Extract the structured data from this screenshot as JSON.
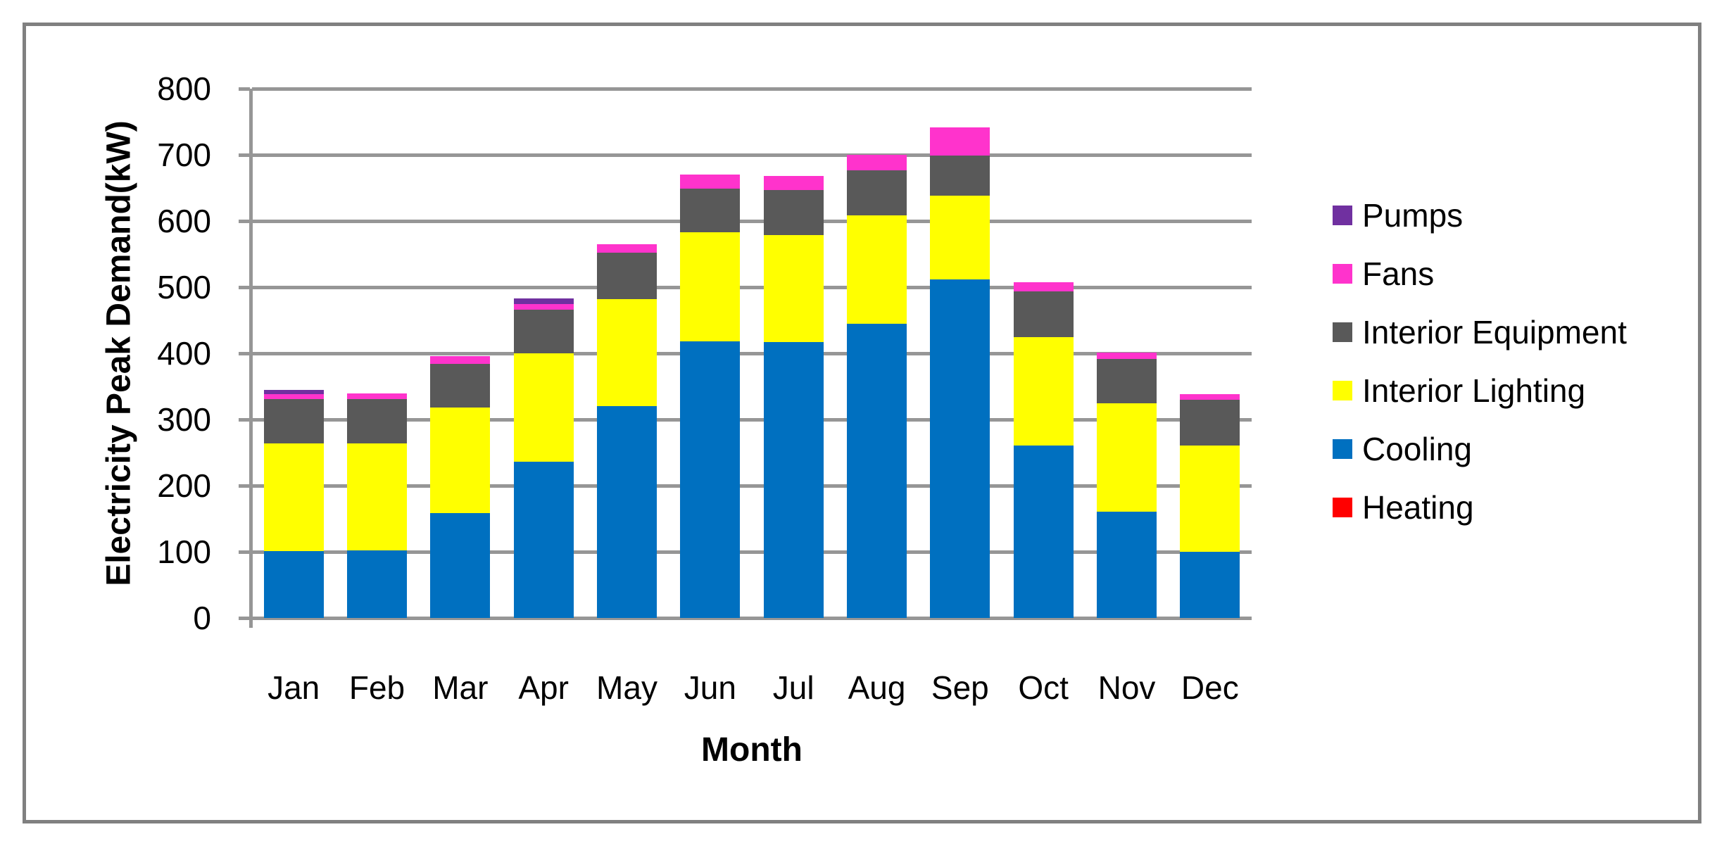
{
  "chart_data": {
    "type": "bar",
    "stacked": true,
    "categories": [
      "Jan",
      "Feb",
      "Mar",
      "Apr",
      "May",
      "Jun",
      "Jul",
      "Aug",
      "Sep",
      "Oct",
      "Nov",
      "Dec"
    ],
    "series": [
      {
        "name": "Heating",
        "color": "#FF0000",
        "values": [
          0,
          0,
          0,
          0,
          0,
          0,
          0,
          0,
          0,
          0,
          0,
          0
        ]
      },
      {
        "name": "Cooling",
        "color": "#0070C0",
        "values": [
          101,
          102,
          158,
          236,
          320,
          418,
          417,
          445,
          512,
          261,
          161,
          100
        ]
      },
      {
        "name": "Interior Lighting",
        "color": "#FFFF00",
        "values": [
          163,
          162,
          160,
          164,
          162,
          165,
          162,
          163,
          126,
          164,
          164,
          161
        ]
      },
      {
        "name": "Interior Equipment",
        "color": "#595959",
        "values": [
          67,
          67,
          66,
          66,
          70,
          66,
          68,
          69,
          61,
          69,
          67,
          69
        ]
      },
      {
        "name": "Fans",
        "color": "#FF33CC",
        "values": [
          7,
          8,
          12,
          9,
          13,
          21,
          21,
          23,
          43,
          13,
          9,
          8
        ]
      },
      {
        "name": "Pumps",
        "color": "#7030A0",
        "values": [
          7,
          0,
          0,
          8,
          0,
          0,
          0,
          0,
          0,
          0,
          0,
          0
        ]
      }
    ],
    "title": "",
    "xlabel": "Month",
    "ylabel": "Electricity Peak Demand(kW)",
    "ylim": [
      0,
      800
    ],
    "ytick_step": 100,
    "yticks": [
      "0",
      "100",
      "200",
      "300",
      "400",
      "500",
      "600",
      "700",
      "800"
    ],
    "grid": true,
    "legend_position": "right",
    "legend_order_top_to_bottom": [
      "Pumps",
      "Fans",
      "Interior Equipment",
      "Interior Lighting",
      "Cooling",
      "Heating"
    ]
  },
  "legend": {
    "items": [
      {
        "label": "Pumps",
        "color": "#7030A0"
      },
      {
        "label": "Fans",
        "color": "#FF33CC"
      },
      {
        "label": "Interior Equipment",
        "color": "#595959"
      },
      {
        "label": "Interior Lighting",
        "color": "#FFFF00"
      },
      {
        "label": "Cooling",
        "color": "#0070C0"
      },
      {
        "label": "Heating",
        "color": "#FF0000"
      }
    ]
  },
  "axes": {
    "y_title": "Electricity Peak Demand(kW)",
    "x_title": "Month"
  },
  "style": {
    "gridline_color": "#969696",
    "axis_color": "#969696",
    "border_color": "#808080",
    "text_color": "#000000",
    "background": "#FFFFFF"
  }
}
